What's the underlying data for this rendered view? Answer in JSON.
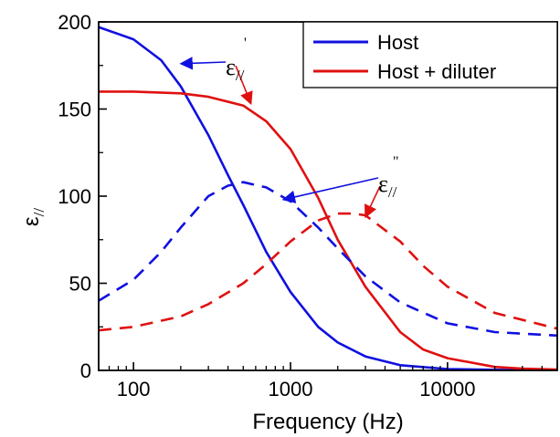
{
  "chart_data": {
    "type": "line",
    "xlabel": "Frequency (Hz)",
    "ylabel_base": "ε",
    "ylabel_sub": "//",
    "xscale": "log",
    "xlim": [
      60,
      50000
    ],
    "ylim": [
      0,
      200
    ],
    "x_ticks": [
      100,
      1000,
      10000
    ],
    "x_tick_labels": [
      "100",
      "1000",
      "10000"
    ],
    "y_ticks": [
      0,
      50,
      100,
      150,
      200
    ],
    "y_tick_labels": [
      "0",
      "50",
      "100",
      "150",
      "200"
    ],
    "legend_position": "top-right",
    "legend": [
      {
        "label": "Host",
        "color": "#1010e0"
      },
      {
        "label": "Host + diluter",
        "color": "#e01010"
      }
    ],
    "series": [
      {
        "name": "Host",
        "component": "real",
        "color": "#1010e0",
        "dash": "solid",
        "x": [
          60,
          100,
          150,
          200,
          300,
          400,
          500,
          700,
          1000,
          1500,
          2000,
          3000,
          5000,
          10000,
          30000,
          50000
        ],
        "y": [
          197,
          190,
          178,
          163,
          135,
          112,
          95,
          68,
          45,
          25,
          16,
          8,
          3,
          0.8,
          0.1,
          0
        ]
      },
      {
        "name": "Host + diluter",
        "component": "real",
        "color": "#e01010",
        "dash": "solid",
        "x": [
          60,
          100,
          200,
          300,
          500,
          700,
          1000,
          1500,
          2000,
          3000,
          5000,
          7000,
          10000,
          20000,
          30000,
          50000
        ],
        "y": [
          160,
          160,
          159,
          157,
          152,
          143,
          127,
          99,
          75,
          48,
          22,
          12,
          7,
          2,
          1,
          0.5
        ]
      },
      {
        "name": "Host",
        "component": "imaginary",
        "color": "#1010e0",
        "dash": "dashed",
        "x": [
          60,
          100,
          150,
          200,
          300,
          400,
          500,
          700,
          1000,
          1500,
          2000,
          3000,
          5000,
          10000,
          20000,
          50000
        ],
        "y": [
          40,
          52,
          68,
          82,
          100,
          106,
          108,
          105,
          97,
          82,
          70,
          54,
          39,
          27,
          22,
          20
        ]
      },
      {
        "name": "Host + diluter",
        "component": "imaginary",
        "color": "#e01010",
        "dash": "dashed",
        "x": [
          60,
          100,
          200,
          300,
          500,
          700,
          1000,
          1500,
          2000,
          2500,
          3000,
          5000,
          7000,
          10000,
          20000,
          50000
        ],
        "y": [
          23,
          25,
          31,
          38,
          50,
          61,
          74,
          86,
          90,
          90,
          89,
          74,
          60,
          48,
          33,
          24
        ]
      }
    ],
    "annotations": [
      {
        "base": "ε",
        "sub": "//",
        "sup": "'",
        "points_to": [
          {
            "x": 200,
            "y": 176
          },
          {
            "x": 560,
            "y": 153
          }
        ]
      },
      {
        "base": "ε",
        "sub": "//",
        "sup": "\"",
        "points_to": [
          {
            "x": 900,
            "y": 98
          },
          {
            "x": 3000,
            "y": 88
          }
        ]
      }
    ]
  }
}
